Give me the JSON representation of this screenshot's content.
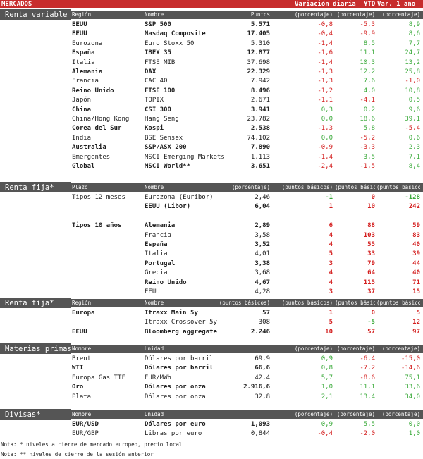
{
  "header": {
    "title": "MERCADOS",
    "col_daily": "Variación diaria",
    "col_ytd": "YTD",
    "col_year": "Var. 1 año"
  },
  "renta_variable": {
    "title": "Renta variable",
    "headers": [
      "Región",
      "Nombre",
      "Puntos",
      "(porcentaje)",
      "(porcentaje)",
      "(porcentaje)"
    ],
    "rows": [
      {
        "region": "EEUU",
        "name": "S&P 500",
        "value": "5.571",
        "daily": "-0,8",
        "ytd": "-5,3",
        "year": "8,9",
        "bold": true
      },
      {
        "region": "EEUU",
        "name": "Nasdaq Composite",
        "value": "17.405",
        "daily": "-0,4",
        "ytd": "-9,9",
        "year": "8,6",
        "bold": true
      },
      {
        "region": "Eurozona",
        "name": "Euro Stoxx 50",
        "value": "5.310",
        "daily": "-1,4",
        "ytd": "8,5",
        "year": "7,7",
        "bold": false
      },
      {
        "region": "España",
        "name": "IBEX 35",
        "value": "12.877",
        "daily": "-1,6",
        "ytd": "11,1",
        "year": "24,7",
        "bold": true
      },
      {
        "region": "Italia",
        "name": "FTSE MIB",
        "value": "37.698",
        "daily": "-1,4",
        "ytd": "10,3",
        "year": "13,2",
        "bold": false
      },
      {
        "region": "Alemania",
        "name": "DAX",
        "value": "22.329",
        "daily": "-1,3",
        "ytd": "12,2",
        "year": "25,8",
        "bold": true
      },
      {
        "region": "Francia",
        "name": "CAC 40",
        "value": "7.942",
        "daily": "-1,3",
        "ytd": "7,6",
        "year": "-1,0",
        "bold": false
      },
      {
        "region": "Reino Unido",
        "name": "FTSE 100",
        "value": "8.496",
        "daily": "-1,2",
        "ytd": "4,0",
        "year": "10,8",
        "bold": true
      },
      {
        "region": "Japón",
        "name": "TOPIX",
        "value": "2.671",
        "daily": "-1,1",
        "ytd": "-4,1",
        "year": "0,5",
        "bold": false
      },
      {
        "region": "China",
        "name": "CSI 300",
        "value": "3.941",
        "daily": "0,3",
        "ytd": "0,2",
        "year": "9,6",
        "bold": true
      },
      {
        "region": "China/Hong Kong",
        "name": "Hang Seng",
        "value": "23.782",
        "daily": "0,0",
        "ytd": "18,6",
        "year": "39,1",
        "bold": false
      },
      {
        "region": "Corea del Sur",
        "name": "Kospi",
        "value": "2.538",
        "daily": "-1,3",
        "ytd": "5,8",
        "year": "-5,4",
        "bold": true
      },
      {
        "region": "India",
        "name": "BSE Sensex",
        "value": "74.102",
        "daily": "0,0",
        "ytd": "-5,2",
        "year": "0,6",
        "bold": false
      },
      {
        "region": "Australia",
        "name": "S&P/ASX 200",
        "value": "7.890",
        "daily": "-0,9",
        "ytd": "-3,3",
        "year": "2,3",
        "bold": true
      },
      {
        "region": "Emergentes",
        "name": "MSCI Emerging Markets",
        "value": "1.113",
        "daily": "-1,4",
        "ytd": "3,5",
        "year": "7,1",
        "bold": false
      },
      {
        "region": "Global",
        "name": "MSCI World**",
        "value": "3.651",
        "daily": "-2,4",
        "ytd": "-1,5",
        "year": "8,4",
        "bold": true
      }
    ]
  },
  "renta_fija_1": {
    "title": "Renta fija*",
    "headers": [
      "Plazo",
      "Nombre",
      "(porcentaje)",
      "(puntos básicos)",
      "(puntos básicos)",
      "(puntos básicos)"
    ],
    "rows": [
      {
        "region": "Tipos 12 meses",
        "name": "Eurozona (Euribor)",
        "value": "2,46",
        "daily": "-1",
        "ytd": "0",
        "year": "-128",
        "bold": false
      },
      {
        "region": "",
        "name": "EEUU (Libor)",
        "value": "6,04",
        "daily": "1",
        "ytd": "10",
        "year": "242",
        "bold": true
      },
      {
        "region": "",
        "name": "",
        "value": "",
        "daily": "",
        "ytd": "",
        "year": "",
        "bold": false
      },
      {
        "region": "Tipos 10 años",
        "name": "Alemania",
        "value": "2,89",
        "daily": "6",
        "ytd": "88",
        "year": "59",
        "bold": true
      },
      {
        "region": "",
        "name": "Francia",
        "value": "3,58",
        "daily": "4",
        "ytd": "103",
        "year": "83",
        "bold": false
      },
      {
        "region": "",
        "name": "España",
        "value": "3,52",
        "daily": "4",
        "ytd": "55",
        "year": "40",
        "bold": true
      },
      {
        "region": "",
        "name": "Italia",
        "value": "4,01",
        "daily": "5",
        "ytd": "33",
        "year": "39",
        "bold": false
      },
      {
        "region": "",
        "name": "Portugal",
        "value": "3,38",
        "daily": "3",
        "ytd": "79",
        "year": "44",
        "bold": true
      },
      {
        "region": "",
        "name": "Grecia",
        "value": "3,68",
        "daily": "4",
        "ytd": "64",
        "year": "40",
        "bold": false
      },
      {
        "region": "",
        "name": "Reino Unido",
        "value": "4,67",
        "daily": "4",
        "ytd": "115",
        "year": "71",
        "bold": true
      },
      {
        "region": "",
        "name": "EEUU",
        "value": "4,28",
        "daily": "3",
        "ytd": "37",
        "year": "15",
        "bold": false
      }
    ]
  },
  "renta_fija_2": {
    "title": "Renta fija*",
    "headers": [
      "Región",
      "Nombre",
      "(puntos básicos)",
      "(puntos básicos)",
      "(puntos básicos)",
      "(puntos básicos)"
    ],
    "rows": [
      {
        "region": "Europa",
        "name": "Itraxx Main 5y",
        "value": "57",
        "daily": "1",
        "ytd": "0",
        "year": "5",
        "bold": true
      },
      {
        "region": "",
        "name": "Itraxx Crossover 5y",
        "value": "308",
        "daily": "5",
        "ytd": "-5",
        "year": "12",
        "bold": false
      },
      {
        "region": "EEUU",
        "name": "Bloomberg aggregate",
        "value": "2.246",
        "daily": "10",
        "ytd": "57",
        "year": "97",
        "bold": true
      }
    ]
  },
  "materias_primas": {
    "title": "Materias primas",
    "headers": [
      "Nombre",
      "Unidad",
      "",
      "(porcentaje)",
      "(porcentaje)",
      "(porcentaje)"
    ],
    "rows": [
      {
        "region": "Brent",
        "name": "Dólares por barril",
        "value": "69,9",
        "daily": "0,9",
        "ytd": "-6,4",
        "year": "-15,0",
        "bold": false
      },
      {
        "region": "WTI",
        "name": "Dólares por barril",
        "value": "66,6",
        "daily": "0,8",
        "ytd": "-7,2",
        "year": "-14,6",
        "bold": true
      },
      {
        "region": "Europa Gas TTF",
        "name": "EUR/MWh",
        "value": "42,4",
        "daily": "5,7",
        "ytd": "-8,6",
        "year": "75,1",
        "bold": false
      },
      {
        "region": "Oro",
        "name": "Dólares por onza",
        "value": "2.916,6",
        "daily": "1,0",
        "ytd": "11,1",
        "year": "33,6",
        "bold": true
      },
      {
        "region": "Plata",
        "name": "Dólares por onza",
        "value": "32,8",
        "daily": "2,1",
        "ytd": "13,4",
        "year": "34,0",
        "bold": false
      }
    ]
  },
  "divisas": {
    "title": "Divisas*",
    "headers": [
      "Nombre",
      "Unidad",
      "",
      "(porcentaje)",
      "(porcentaje)",
      "(porcentaje)"
    ],
    "rows": [
      {
        "region": "EUR/USD",
        "name": "Dólares por euro",
        "value": "1,093",
        "daily": "0,9",
        "ytd": "5,5",
        "year": "0,0",
        "bold": true
      },
      {
        "region": "EUR/GBP",
        "name": "Libras por euro",
        "value": "0,844",
        "daily": "-0,4",
        "ytd": "-2,0",
        "year": "1,0",
        "bold": false
      }
    ]
  },
  "notes": [
    "Nota: * niveles a cierre de mercado europeo, precio local",
    "Nota: ** niveles de cierre de la sesión anterior"
  ],
  "colors": {
    "header_red": "#c72c2c",
    "section_gray": "#555555",
    "negative": "#d42020",
    "positive": "#3aaa3a"
  }
}
